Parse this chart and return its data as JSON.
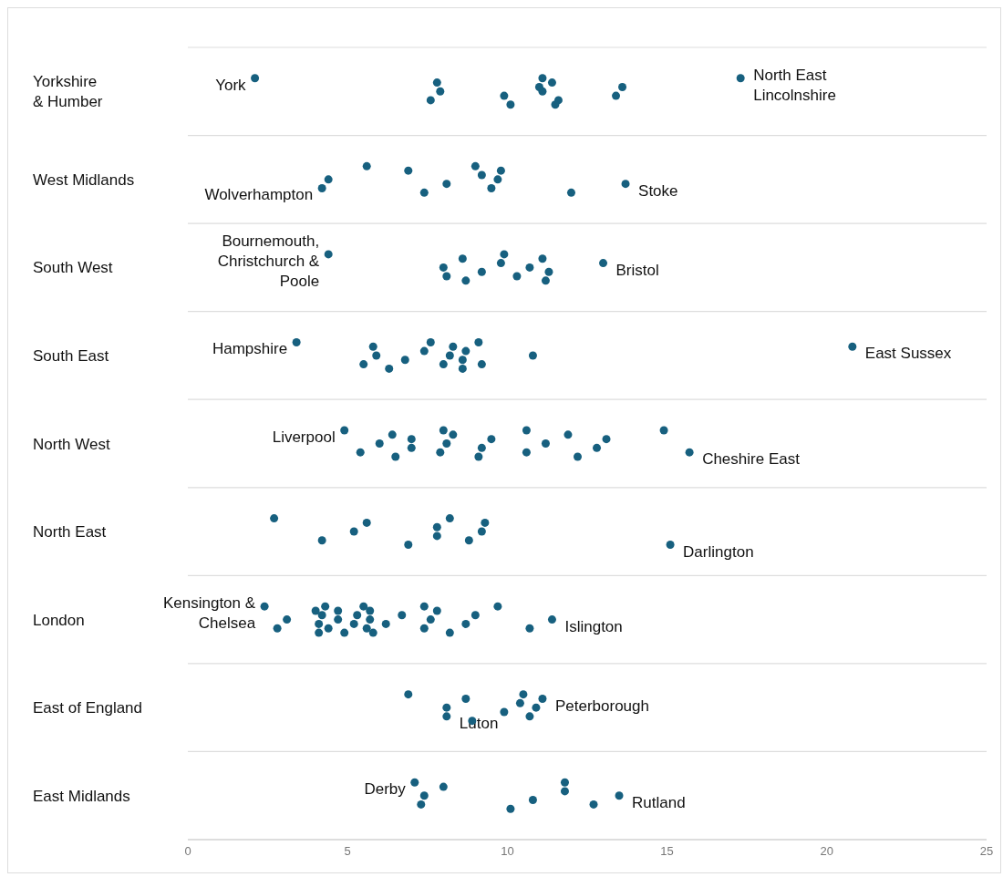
{
  "chart_data": {
    "type": "scatter",
    "orientation": "horizontal",
    "categories": [
      "Yorkshire & Humber",
      "West Midlands",
      "South West",
      "South East",
      "North West",
      "North East",
      "London",
      "East of England",
      "East Midlands"
    ],
    "series": [
      {
        "color": "#17607f",
        "x": [
          "Yorkshire & Humber",
          "Yorkshire & Humber",
          "Yorkshire & Humber",
          "Yorkshire & Humber",
          "Yorkshire & Humber",
          "Yorkshire & Humber",
          "Yorkshire & Humber",
          "Yorkshire & Humber",
          "Yorkshire & Humber",
          "Yorkshire & Humber",
          "Yorkshire & Humber",
          "Yorkshire & Humber",
          "Yorkshire & Humber",
          "Yorkshire & Humber",
          "Yorkshire & Humber"
        ],
        "values": [
          2.1,
          7.6,
          7.9,
          7.8,
          10.1,
          9.9,
          11.0,
          11.1,
          11.6,
          11.1,
          11.4,
          11.5,
          13.4,
          13.6,
          17.3
        ],
        "value_labels": [
          "York",
          null,
          null,
          null,
          null,
          null,
          null,
          null,
          null,
          null,
          null,
          null,
          null,
          null,
          "North East Lincolnshire"
        ]
      },
      {
        "color": "#17607f",
        "x": [
          "West Midlands",
          "West Midlands",
          "West Midlands",
          "West Midlands",
          "West Midlands",
          "West Midlands",
          "West Midlands",
          "West Midlands",
          "West Midlands",
          "West Midlands",
          "West Midlands",
          "West Midlands",
          "West Midlands"
        ],
        "values": [
          5.6,
          4.2,
          4.4,
          6.9,
          7.4,
          8.1,
          9.2,
          9.0,
          9.5,
          9.7,
          9.8,
          12.0,
          13.7
        ],
        "value_labels": [
          null,
          "Wolverhampton",
          null,
          null,
          null,
          null,
          null,
          null,
          null,
          null,
          null,
          null,
          "Stoke"
        ]
      },
      {
        "color": "#17607f",
        "x": [
          "South West",
          "South West",
          "South West",
          "South West",
          "South West",
          "South West",
          "South West",
          "South West",
          "South West",
          "South West",
          "South West",
          "South West",
          "South West",
          "South West"
        ],
        "values": [
          4.4,
          8.1,
          8.0,
          8.6,
          8.7,
          9.2,
          9.8,
          9.9,
          10.3,
          10.7,
          11.1,
          11.2,
          11.3,
          13.0
        ],
        "value_labels": [
          "Bournemouth, Christchurch & Poole",
          null,
          null,
          null,
          null,
          null,
          null,
          null,
          null,
          null,
          null,
          null,
          null,
          "Bristol"
        ]
      },
      {
        "color": "#17607f",
        "x": [
          "South East",
          "South East",
          "South East",
          "South East",
          "South East",
          "South East",
          "South East",
          "South East",
          "South East",
          "South East",
          "South East",
          "South East",
          "South East",
          "South East",
          "South East",
          "South East",
          "South East",
          "South East"
        ],
        "values": [
          3.4,
          5.5,
          5.9,
          5.8,
          6.3,
          6.8,
          7.4,
          7.6,
          8.0,
          8.2,
          8.3,
          8.6,
          8.6,
          8.7,
          9.1,
          9.2,
          10.8,
          20.8
        ],
        "value_labels": [
          "Hampshire",
          null,
          null,
          null,
          null,
          null,
          null,
          null,
          null,
          null,
          null,
          null,
          null,
          null,
          null,
          null,
          null,
          "East Sussex"
        ]
      },
      {
        "color": "#17607f",
        "x": [
          "North West",
          "North West",
          "North West",
          "North West",
          "North West",
          "North West",
          "North West",
          "North West",
          "North West",
          "North West",
          "North West",
          "North West",
          "North West",
          "North West",
          "North West",
          "North West",
          "North West",
          "North West",
          "North West",
          "North West",
          "North West",
          "North West",
          "North West"
        ],
        "values": [
          4.9,
          5.4,
          6.0,
          6.4,
          6.5,
          7.0,
          7.0,
          8.0,
          7.9,
          8.1,
          8.3,
          9.1,
          9.2,
          9.5,
          10.6,
          10.6,
          11.2,
          11.9,
          12.2,
          12.8,
          13.1,
          14.9,
          15.7
        ],
        "value_labels": [
          "Liverpool",
          null,
          null,
          null,
          null,
          null,
          null,
          null,
          null,
          null,
          null,
          null,
          null,
          null,
          null,
          null,
          null,
          null,
          null,
          null,
          null,
          null,
          "Cheshire East"
        ]
      },
      {
        "color": "#17607f",
        "x": [
          "North East",
          "North East",
          "North East",
          "North East",
          "North East",
          "North East",
          "North East",
          "North East",
          "North East",
          "North East",
          "North East",
          "North East"
        ],
        "values": [
          2.7,
          4.2,
          5.2,
          5.6,
          6.9,
          7.8,
          7.8,
          8.2,
          8.8,
          9.2,
          9.3,
          15.1
        ],
        "value_labels": [
          null,
          null,
          null,
          null,
          null,
          null,
          null,
          null,
          null,
          null,
          null,
          "Darlington"
        ]
      },
      {
        "color": "#17607f",
        "x": [
          "London",
          "London",
          "London",
          "London",
          "London",
          "London",
          "London",
          "London",
          "London",
          "London",
          "London",
          "London",
          "London",
          "London",
          "London",
          "London",
          "London",
          "London",
          "London",
          "London",
          "London",
          "London",
          "London",
          "London",
          "London",
          "London",
          "London",
          "London",
          "London",
          "London",
          "London"
        ],
        "values": [
          2.4,
          2.8,
          3.1,
          4.0,
          4.1,
          4.1,
          4.2,
          4.3,
          4.4,
          4.7,
          4.7,
          4.9,
          5.2,
          5.3,
          5.5,
          5.6,
          5.7,
          5.7,
          5.8,
          6.2,
          6.7,
          7.4,
          7.4,
          7.6,
          7.8,
          8.2,
          8.7,
          9.0,
          9.7,
          10.7,
          11.4
        ],
        "value_labels": [
          "Kensington & Chelsea",
          null,
          null,
          null,
          null,
          null,
          null,
          null,
          null,
          null,
          null,
          null,
          null,
          null,
          null,
          null,
          null,
          null,
          null,
          null,
          null,
          null,
          null,
          null,
          null,
          null,
          null,
          null,
          null,
          null,
          "Islington"
        ]
      },
      {
        "color": "#17607f",
        "x": [
          "East of England",
          "East of England",
          "East of England",
          "East of England",
          "East of England",
          "East of England",
          "East of England",
          "East of England",
          "East of England",
          "East of England",
          "East of England"
        ],
        "values": [
          6.9,
          8.1,
          8.1,
          8.7,
          8.9,
          9.9,
          10.4,
          10.5,
          10.7,
          10.9,
          11.1
        ],
        "value_labels": [
          null,
          "Luton",
          null,
          null,
          null,
          null,
          null,
          null,
          null,
          null,
          "Peterborough"
        ]
      },
      {
        "color": "#17607f",
        "x": [
          "East Midlands",
          "East Midlands",
          "East Midlands",
          "East Midlands",
          "East Midlands",
          "East Midlands",
          "East Midlands",
          "East Midlands",
          "East Midlands",
          "East Midlands"
        ],
        "values": [
          7.1,
          7.3,
          7.4,
          8.0,
          10.1,
          10.8,
          11.8,
          11.8,
          12.7,
          13.5
        ],
        "value_labels": [
          "Derby",
          null,
          null,
          null,
          null,
          null,
          null,
          null,
          null,
          "Rutland"
        ]
      }
    ],
    "xlim": [
      0,
      25
    ],
    "xticks": [
      0,
      5,
      10,
      15,
      20,
      25
    ],
    "grid": "y",
    "marker": "circle"
  }
}
